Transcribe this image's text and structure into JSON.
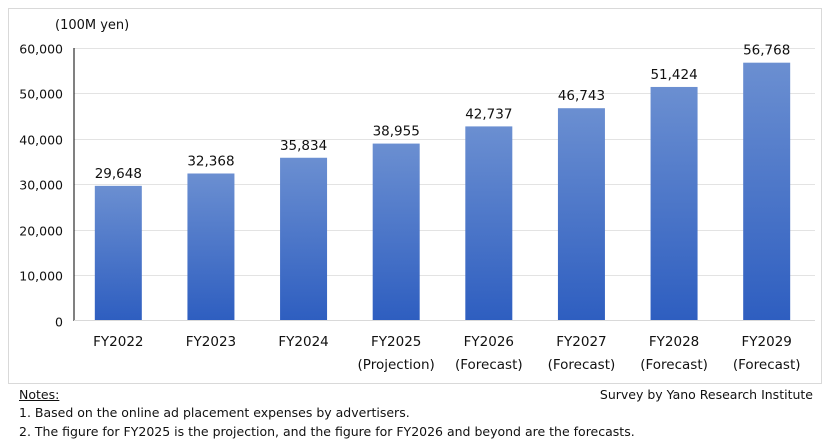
{
  "chart_data": {
    "type": "bar",
    "unit_label": "(100M yen)",
    "categories": [
      [
        "FY2022"
      ],
      [
        "FY2023"
      ],
      [
        "FY2024"
      ],
      [
        "FY2025",
        "(Projection)"
      ],
      [
        "FY2026",
        "(Forecast)"
      ],
      [
        "FY2027",
        "(Forecast)"
      ],
      [
        "FY2028",
        "(Forecast)"
      ],
      [
        "FY2029",
        "(Forecast)"
      ]
    ],
    "values": [
      29648,
      32368,
      35834,
      38955,
      42737,
      46743,
      51424,
      56768
    ],
    "data_labels": [
      "29,648",
      "32,368",
      "35,834",
      "38,955",
      "42,737",
      "46,743",
      "51,424",
      "56,768"
    ],
    "ylim": [
      0,
      60000
    ],
    "yticks": [
      0,
      10000,
      20000,
      30000,
      40000,
      50000,
      60000
    ],
    "ytick_labels": [
      "0",
      "10,000",
      "20,000",
      "30,000",
      "40,000",
      "50,000",
      "60,000"
    ],
    "grid": true,
    "bar_color_top": "#6b8fd1",
    "bar_color_bottom": "#2e5ec0"
  },
  "notes": {
    "heading": "Notes:",
    "items": [
      "1.  Based on the online ad placement expenses by advertisers.",
      "2.  The figure for FY2025 is the projection, and the figure for FY2026 and beyond are the forecasts."
    ],
    "source": "Survey by Yano Research Institute"
  }
}
